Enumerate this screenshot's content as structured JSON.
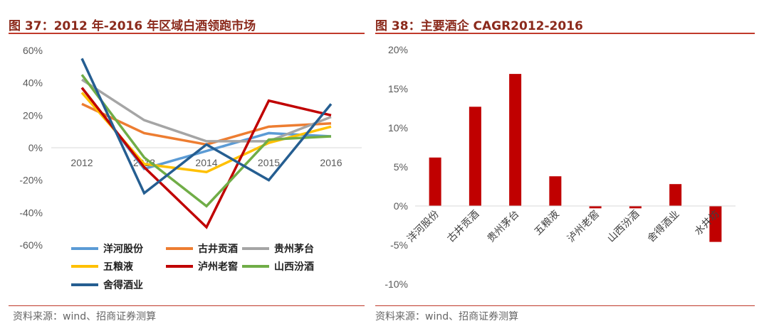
{
  "charts": [
    {
      "figure_title": "图 37：2012 年-2016 年区域白酒领跑市场",
      "source": "资料来源：wind、招商证券测算"
    },
    {
      "figure_title": "图 38：主要酒企 CAGR2012-2016",
      "source": "资料来源：wind、招商证券测算"
    }
  ],
  "chart_data": [
    {
      "type": "line",
      "title": "图 37：2012 年-2016 年区域白酒领跑市场",
      "x": [
        "2012",
        "2013",
        "2014",
        "2015",
        "2016"
      ],
      "ylim": [
        -60,
        60
      ],
      "yticks": [
        "60%",
        "40%",
        "20%",
        "0%",
        "-20%",
        "-40%",
        "-60%"
      ],
      "ytick_values": [
        60,
        40,
        20,
        0,
        -20,
        -40,
        -60
      ],
      "grid": false,
      "legend": "bottom",
      "series": [
        {
          "name": "洋河股份",
          "color": "#5b9bd5",
          "values": [
            37,
            -13,
            -2,
            9,
            7
          ]
        },
        {
          "name": "古井贡酒",
          "color": "#ed7d31",
          "values": [
            27,
            9,
            2,
            13,
            15
          ]
        },
        {
          "name": "贵州茅台",
          "color": "#a5a5a5",
          "values": [
            42,
            17,
            4,
            4,
            19
          ]
        },
        {
          "name": "五粮液",
          "color": "#ffc000",
          "values": [
            34,
            -10,
            -15,
            3,
            13
          ]
        },
        {
          "name": "泸州老窖",
          "color": "#c00000",
          "values": [
            37,
            -12,
            -49,
            29,
            20
          ]
        },
        {
          "name": "山西汾酒",
          "color": "#70ad47",
          "values": [
            45,
            -6,
            -36,
            5,
            7
          ]
        },
        {
          "name": "舍得酒业",
          "color": "#255e91",
          "values": [
            55,
            -28,
            2,
            -20,
            27
          ]
        }
      ]
    },
    {
      "type": "bar",
      "title": "图 38：主要酒企 CAGR2012-2016",
      "categories": [
        "洋河股份",
        "古井贡酒",
        "贵州茅台",
        "五粮液",
        "泸州老窖",
        "山西汾酒",
        "舍得酒业",
        "水井坊"
      ],
      "values": [
        6.2,
        12.7,
        16.9,
        3.8,
        -0.3,
        -0.3,
        2.8,
        -4.6
      ],
      "ylim": [
        -10,
        20
      ],
      "yticks": [
        "20%",
        "15%",
        "10%",
        "5%",
        "0%",
        "-5%",
        "-10%"
      ],
      "ytick_values": [
        20,
        15,
        10,
        5,
        0,
        -5,
        -10
      ],
      "ylabel": "",
      "xlabel": "",
      "bar_color": "#c00000",
      "grid": false
    }
  ]
}
